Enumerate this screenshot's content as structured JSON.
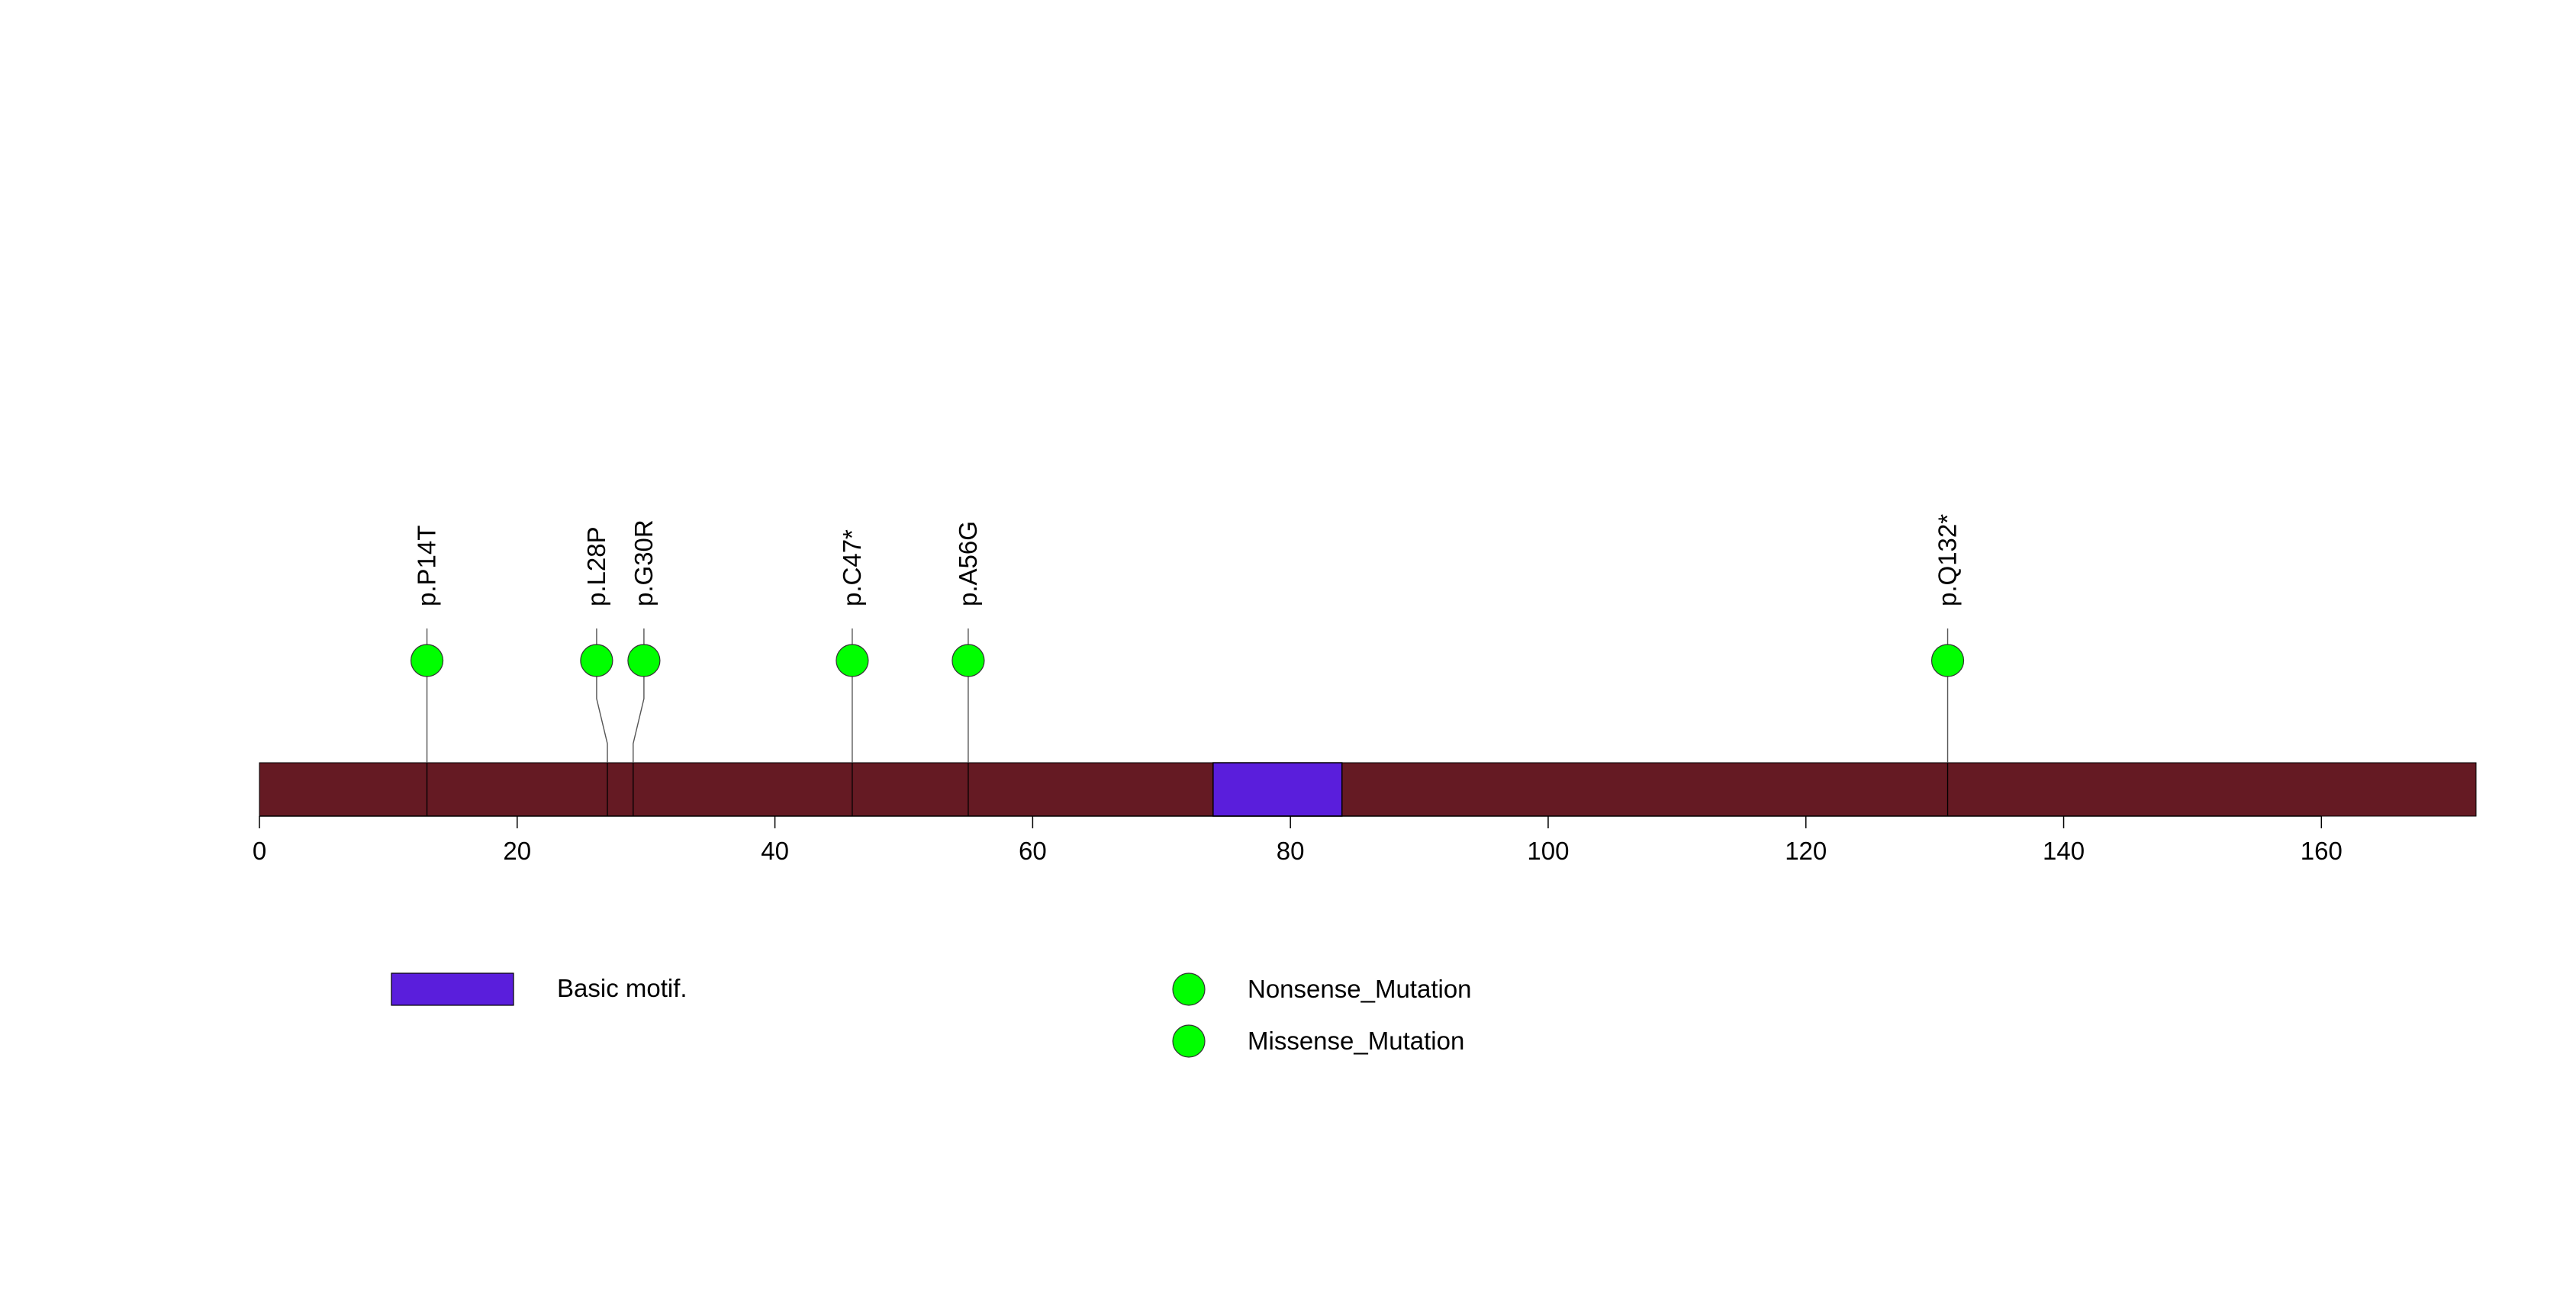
{
  "chart_data": {
    "type": "lollipop",
    "protein_length": 172,
    "xlim": [
      0,
      172
    ],
    "x_ticks": [
      0,
      20,
      40,
      60,
      80,
      100,
      120,
      140,
      160
    ],
    "backbone_color": "#651A23",
    "domains": [
      {
        "name": "Basic motif.",
        "start": 74,
        "end": 84,
        "color": "#5A1EDC"
      }
    ],
    "mutations": [
      {
        "label": "p.P14T",
        "position": 13,
        "type": "Missense_Mutation"
      },
      {
        "label": "p.L28P",
        "position": 27,
        "type": "Missense_Mutation"
      },
      {
        "label": "p.G30R",
        "position": 29,
        "type": "Missense_Mutation"
      },
      {
        "label": "p.C47*",
        "position": 46,
        "type": "Nonsense_Mutation"
      },
      {
        "label": "p.A56G",
        "position": 55,
        "type": "Missense_Mutation"
      },
      {
        "label": "p.Q132*",
        "position": 131,
        "type": "Nonsense_Mutation"
      }
    ],
    "mutation_types": [
      {
        "name": "Nonsense_Mutation",
        "color": "#00FF00"
      },
      {
        "name": "Missense_Mutation",
        "color": "#00FF00"
      }
    ],
    "legend": {
      "domain_label": "Basic motif.",
      "domain_color": "#5A1EDC"
    }
  }
}
